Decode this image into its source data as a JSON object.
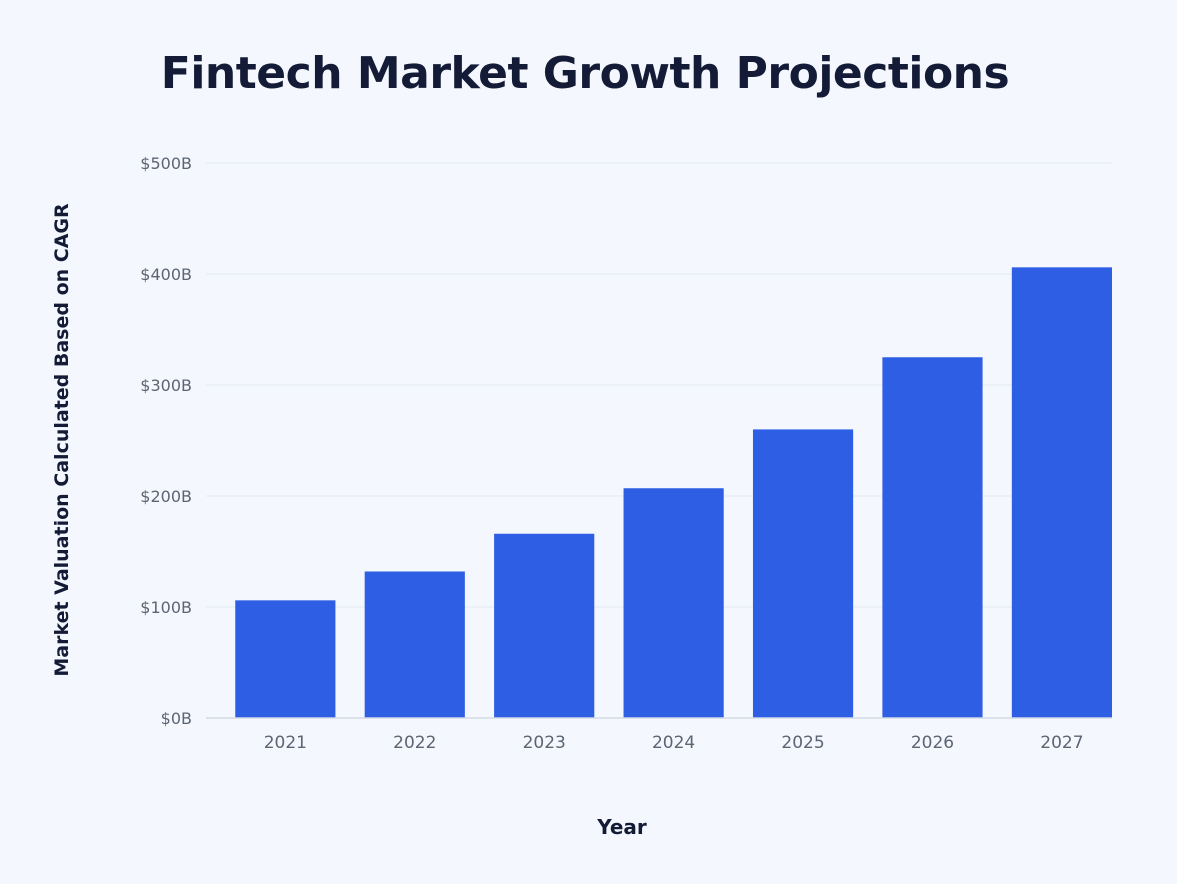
{
  "chart_data": {
    "type": "bar",
    "title": "Fintech Market Growth Projections",
    "xlabel": "Year",
    "ylabel": "Market Valuation Calculated Based on CAGR",
    "categories": [
      "2021",
      "2022",
      "2023",
      "2024",
      "2025",
      "2026",
      "2027"
    ],
    "values": [
      106,
      132,
      166,
      207,
      260,
      325,
      406
    ],
    "ylim": [
      0,
      500
    ],
    "y_ticks": [
      {
        "value": 0,
        "label": "$0B"
      },
      {
        "value": 100,
        "label": "$100B"
      },
      {
        "value": 200,
        "label": "$200B"
      },
      {
        "value": 300,
        "label": "$300B"
      },
      {
        "value": 400,
        "label": "$400B"
      },
      {
        "value": 500,
        "label": "$500B"
      }
    ],
    "grid": true,
    "legend": false,
    "colors": {
      "bar": "#2e5ee4",
      "grid": "#e4eaf2",
      "tick_text": "#5d6472",
      "title": "#141b36",
      "background": "#f4f8fe"
    }
  }
}
